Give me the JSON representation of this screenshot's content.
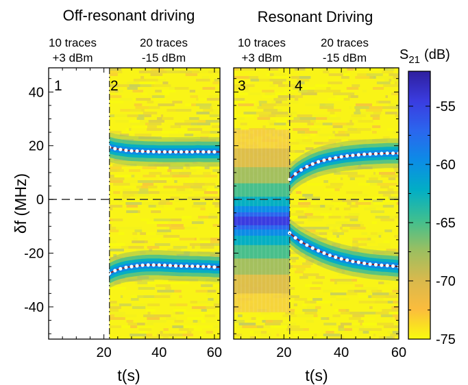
{
  "chart_data": [
    {
      "type": "heatmap",
      "title": "Off-resonant driving",
      "xlabel": "t(s)",
      "ylabel": "δf (MHz)",
      "xlim": [
        0,
        62
      ],
      "ylim": [
        -52,
        49
      ],
      "xticks": [
        20,
        40,
        60
      ],
      "yticks": [
        40,
        20,
        0,
        -20,
        -40
      ],
      "segment_boundary_s": 22,
      "segments": [
        {
          "traces": "10 traces",
          "power": "+3 dBm",
          "panel": "1",
          "data": "blank"
        },
        {
          "traces": "20 traces",
          "power": "-15 dBm",
          "panel": "2"
        }
      ],
      "resonances": [
        {
          "name": "upper",
          "t": [
            22,
            24,
            26,
            28,
            30,
            32,
            34,
            36,
            38,
            40,
            42,
            44,
            46,
            48,
            50,
            52,
            54,
            56,
            58,
            60
          ],
          "f": [
            19.5,
            18.9,
            18.6,
            18.3,
            18.1,
            18.0,
            17.9,
            17.8,
            17.8,
            17.7,
            17.7,
            17.7,
            17.7,
            17.7,
            17.7,
            17.7,
            17.8,
            17.7,
            17.7,
            17.7
          ]
        },
        {
          "name": "lower",
          "t": [
            22,
            24,
            26,
            28,
            30,
            32,
            34,
            36,
            38,
            40,
            42,
            44,
            46,
            48,
            50,
            52,
            54,
            56,
            58,
            60
          ],
          "f": [
            -27.5,
            -26.5,
            -25.8,
            -25.3,
            -25.0,
            -24.7,
            -24.5,
            -24.4,
            -24.4,
            -24.4,
            -24.5,
            -24.6,
            -24.7,
            -24.8,
            -24.8,
            -24.9,
            -24.9,
            -25.0,
            -25.0,
            -25.2
          ]
        }
      ],
      "zero_line": 0
    },
    {
      "type": "heatmap",
      "title": "Resonant Driving",
      "xlabel": "t(s)",
      "xlim": [
        0,
        60
      ],
      "ylim": [
        -52,
        49
      ],
      "xticks": [
        20,
        40,
        60
      ],
      "segment_boundary_s": 22,
      "segments": [
        {
          "traces": "10 traces",
          "power": "+3 dBm",
          "panel": "3"
        },
        {
          "traces": "20 traces",
          "power": "-15 dBm",
          "panel": "4"
        }
      ],
      "driven_resonance": {
        "t_range": [
          2,
          22
        ],
        "f_center": -8,
        "f_width": 8
      },
      "resonances": [
        {
          "name": "upper",
          "t": [
            22,
            24,
            26,
            28,
            30,
            32,
            34,
            36,
            38,
            40,
            42,
            44,
            46,
            48,
            50,
            52,
            54,
            56,
            58,
            60
          ],
          "f": [
            7.5,
            9.5,
            11.0,
            12.2,
            13.2,
            14.0,
            14.6,
            15.1,
            15.5,
            15.9,
            16.2,
            16.4,
            16.6,
            16.8,
            16.9,
            17.0,
            17.1,
            17.2,
            17.2,
            17.2
          ]
        },
        {
          "name": "lower",
          "t": [
            22,
            24,
            26,
            28,
            30,
            32,
            34,
            36,
            38,
            40,
            42,
            44,
            46,
            48,
            50,
            52,
            54,
            56,
            58,
            60
          ],
          "f": [
            -12.5,
            -14.3,
            -15.8,
            -17.0,
            -18.1,
            -19.1,
            -20.0,
            -20.8,
            -21.5,
            -22.1,
            -22.6,
            -23.1,
            -23.4,
            -23.8,
            -24.1,
            -24.3,
            -24.5,
            -24.6,
            -24.8,
            -25.0
          ]
        }
      ],
      "zero_line": 0
    }
  ],
  "colorbar": {
    "label": "S",
    "label_subscript": "21",
    "unit": "(dB)",
    "range": [
      -75,
      -52
    ],
    "ticks": [
      -55,
      -60,
      -65,
      -70,
      -75
    ],
    "colors": [
      "#f9fb0e",
      "#fbbc3d",
      "#d8b94d",
      "#9abf61",
      "#3fbf90",
      "#02aec5",
      "#0c8ce6",
      "#2b66ee",
      "#3a3ce0",
      "#2f1f9e"
    ]
  },
  "styles": {
    "background": "#f9f417",
    "noise_colors": [
      "#f9fb0e",
      "#f2f01f",
      "#eedf2a",
      "#e8d23b",
      "#dccd48",
      "#f7c83a",
      "#c8cf5a"
    ],
    "fit_color": "#8c1a2c",
    "marker_color": "#ffffff"
  }
}
